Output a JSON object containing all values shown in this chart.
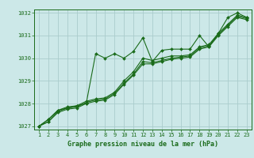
{
  "title": "Graphe pression niveau de la mer (hPa)",
  "bg_color": "#cce8e8",
  "line_color": "#1a6b1a",
  "grid_color": "#aacccc",
  "xlim": [
    0.5,
    23.5
  ],
  "ylim": [
    1026.85,
    1032.15
  ],
  "xticks": [
    1,
    2,
    3,
    4,
    5,
    6,
    7,
    8,
    9,
    10,
    11,
    12,
    13,
    14,
    15,
    16,
    17,
    18,
    19,
    20,
    21,
    22,
    23
  ],
  "yticks": [
    1027,
    1028,
    1029,
    1030,
    1031,
    1032
  ],
  "series": [
    [
      1027.0,
      1027.3,
      1027.7,
      1027.8,
      1027.9,
      1028.0,
      1030.2,
      1030.0,
      1030.2,
      1030.0,
      1030.3,
      1030.9,
      1029.85,
      1030.35,
      1030.4,
      1030.4,
      1030.4,
      1031.0,
      1030.5,
      1031.1,
      1031.8,
      1032.0,
      1031.8
    ],
    [
      1027.0,
      1027.3,
      1027.7,
      1027.85,
      1027.9,
      1028.1,
      1028.2,
      1028.25,
      1028.5,
      1029.0,
      1029.4,
      1030.0,
      1029.9,
      1030.0,
      1030.1,
      1030.1,
      1030.15,
      1030.5,
      1030.6,
      1031.1,
      1031.5,
      1031.9,
      1031.8
    ],
    [
      1027.0,
      1027.2,
      1027.65,
      1027.8,
      1027.85,
      1028.05,
      1028.15,
      1028.2,
      1028.45,
      1028.9,
      1029.3,
      1029.85,
      1029.8,
      1029.9,
      1030.0,
      1030.05,
      1030.1,
      1030.45,
      1030.55,
      1031.05,
      1031.45,
      1031.85,
      1031.75
    ],
    [
      1027.0,
      1027.2,
      1027.6,
      1027.75,
      1027.8,
      1028.0,
      1028.1,
      1028.15,
      1028.4,
      1028.85,
      1029.25,
      1029.75,
      1029.75,
      1029.85,
      1029.95,
      1030.0,
      1030.05,
      1030.4,
      1030.5,
      1031.0,
      1031.4,
      1031.8,
      1031.7
    ]
  ],
  "tick_fontsize": 5,
  "xlabel_fontsize": 6,
  "lw": 0.8,
  "ms": 2.0
}
